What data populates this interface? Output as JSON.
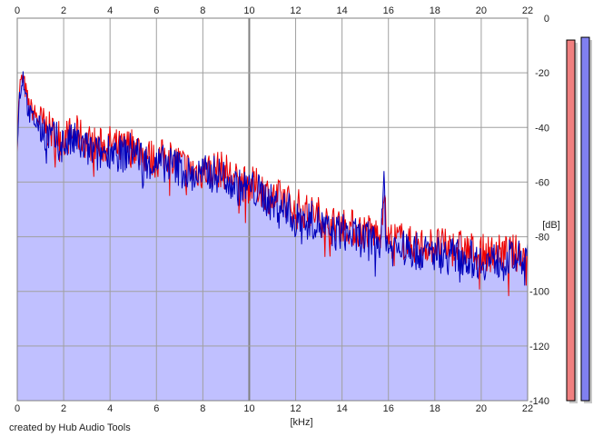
{
  "credit": "created by Hub Audio Tools",
  "colors": {
    "background": "#ffffff",
    "plot_area": "#ffffff",
    "fill": "#c0c0ff",
    "grid": "#a0a0a0",
    "grid_major": "#808080",
    "left_channel": "#ee0000",
    "right_channel": "#0000bb",
    "meter_left": "#f08080",
    "meter_right": "#8080f0",
    "meter_shadow": "#c8c8c8"
  },
  "chart_data": {
    "type": "line",
    "title": "",
    "xlabel": "[kHz]",
    "ylabel": "[dB]",
    "xlim": [
      0,
      22
    ],
    "ylim": [
      -140,
      0
    ],
    "x_ticks": [
      "0",
      "2",
      "4",
      "6",
      "8",
      "10",
      "12",
      "14",
      "16",
      "18",
      "20",
      "22"
    ],
    "y_ticks": [
      "0",
      "-20",
      "-40",
      "-60",
      "-80",
      "-100",
      "-120",
      "-140"
    ],
    "grid": true,
    "legend": "none",
    "x": [
      0,
      0.1,
      0.25,
      0.5,
      1,
      1.5,
      2,
      2.5,
      3,
      3.5,
      4,
      4.5,
      5,
      5.5,
      6,
      6.5,
      7,
      7.5,
      8,
      8.5,
      9,
      9.5,
      10,
      10.5,
      11,
      11.5,
      11.9,
      12,
      12.1,
      12.5,
      13,
      13.5,
      14,
      14.5,
      15,
      15.5,
      15.7,
      15.8,
      15.9,
      16,
      16.5,
      17,
      17.5,
      18,
      18.5,
      19,
      19.5,
      20,
      20.5,
      21,
      21.5,
      22
    ],
    "series": [
      {
        "values": [
          -45,
          -25,
          -22,
          -32,
          -38,
          -42,
          -44,
          -42,
          -45,
          -47,
          -46,
          -48,
          -46,
          -50,
          -52,
          -50,
          -53,
          -56,
          -56,
          -55,
          -56,
          -60,
          -61,
          -62,
          -66,
          -66,
          -69,
          -74,
          -69,
          -71,
          -72,
          -76,
          -75,
          -77,
          -78,
          -79,
          -77,
          -60,
          -77,
          -81,
          -81,
          -83,
          -83,
          -83,
          -84,
          -84,
          -85,
          -86,
          -86,
          -86,
          -86,
          -87
        ]
      },
      {
        "values": [
          -45,
          -28,
          -21,
          -35,
          -40,
          -44,
          -46,
          -45,
          -48,
          -50,
          -48,
          -50,
          -48,
          -52,
          -54,
          -53,
          -55,
          -58,
          -57,
          -57,
          -58,
          -62,
          -62,
          -64,
          -68,
          -69,
          -72,
          -80,
          -72,
          -73,
          -75,
          -79,
          -78,
          -80,
          -81,
          -82,
          -80,
          -58,
          -80,
          -84,
          -84,
          -85,
          -86,
          -86,
          -87,
          -87,
          -88,
          -89,
          -89,
          -88,
          -88,
          -89
        ]
      }
    ],
    "level_meters": {
      "min": -140,
      "max": 0,
      "values": [
        -8,
        -7
      ]
    }
  }
}
